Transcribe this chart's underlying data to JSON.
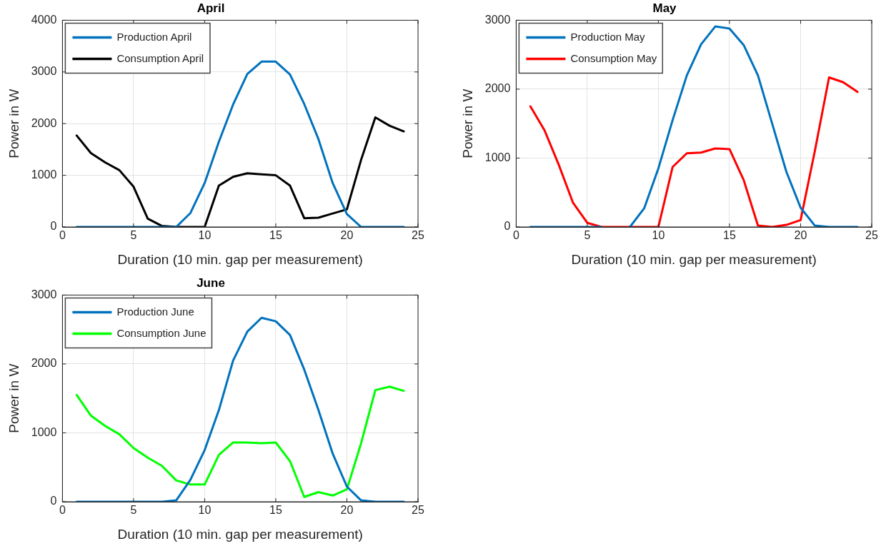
{
  "chart_data": [
    {
      "type": "line",
      "title": "April",
      "xlabel": "Duration (10 min. gap per measurement)",
      "ylabel": "Power in W",
      "x": [
        1,
        2,
        3,
        4,
        5,
        6,
        7,
        8,
        9,
        10,
        11,
        12,
        13,
        14,
        15,
        16,
        17,
        18,
        19,
        20,
        21,
        22,
        23,
        24
      ],
      "series": [
        {
          "name": "Production April",
          "color": "#0072bd",
          "values": [
            0,
            0,
            0,
            0,
            0,
            0,
            0,
            0,
            270,
            850,
            1650,
            2370,
            2960,
            3200,
            3200,
            2950,
            2380,
            1700,
            850,
            250,
            0,
            0,
            0,
            0
          ]
        },
        {
          "name": "Consumption April",
          "color": "#000000",
          "values": [
            1770,
            1430,
            1250,
            1100,
            780,
            160,
            20,
            0,
            0,
            0,
            800,
            970,
            1040,
            1020,
            1000,
            800,
            170,
            180,
            260,
            340,
            1300,
            2120,
            1960,
            1850
          ]
        }
      ],
      "xlim": [
        0,
        25
      ],
      "xticks": [
        0,
        5,
        10,
        15,
        20,
        25
      ],
      "ylim": [
        0,
        4000
      ],
      "yticks": [
        0,
        1000,
        2000,
        3000,
        4000
      ],
      "grid": true,
      "legend": "top left"
    },
    {
      "type": "line",
      "title": "May",
      "xlabel": "Duration (10 min. gap per measurement)",
      "ylabel": "Power in W",
      "x": [
        1,
        2,
        3,
        4,
        5,
        6,
        7,
        8,
        9,
        10,
        11,
        12,
        13,
        14,
        15,
        16,
        17,
        18,
        19,
        20,
        21,
        22,
        23,
        24
      ],
      "series": [
        {
          "name": "Production May",
          "color": "#0072bd",
          "values": [
            0,
            0,
            0,
            0,
            0,
            0,
            null,
            0,
            270,
            850,
            1550,
            2200,
            2650,
            2910,
            2880,
            2640,
            2200,
            1500,
            800,
            280,
            20,
            0,
            0,
            0
          ]
        },
        {
          "name": "Consumption May",
          "color": "#ff0000",
          "values": [
            1750,
            1400,
            900,
            350,
            60,
            0,
            0,
            0,
            0,
            0,
            870,
            1070,
            1080,
            1140,
            1130,
            680,
            20,
            0,
            30,
            100,
            1100,
            2170,
            2100,
            1960
          ]
        }
      ],
      "xlim": [
        0,
        25
      ],
      "xticks": [
        0,
        5,
        10,
        15,
        20,
        25
      ],
      "ylim": [
        0,
        3000
      ],
      "yticks": [
        0,
        1000,
        2000,
        3000
      ],
      "grid": true,
      "legend": "top left"
    },
    {
      "type": "line",
      "title": "June",
      "xlabel": "Duration (10 min. gap per measurement)",
      "ylabel": "Power in W",
      "x": [
        1,
        2,
        3,
        4,
        5,
        6,
        7,
        8,
        9,
        10,
        11,
        12,
        13,
        14,
        15,
        16,
        17,
        18,
        19,
        20,
        21,
        22,
        23,
        24
      ],
      "series": [
        {
          "name": "Production June",
          "color": "#0072bd",
          "values": [
            0,
            0,
            0,
            0,
            0,
            0,
            0,
            20,
            320,
            750,
            1330,
            2050,
            2470,
            2670,
            2620,
            2420,
            1920,
            1330,
            700,
            220,
            20,
            0,
            0,
            0
          ]
        },
        {
          "name": "Consumption June",
          "color": "#00ff00",
          "values": [
            1550,
            1250,
            1100,
            980,
            780,
            640,
            520,
            310,
            250,
            250,
            680,
            860,
            860,
            850,
            860,
            590,
            70,
            140,
            90,
            180,
            850,
            1620,
            1670,
            1610
          ]
        }
      ],
      "xlim": [
        0,
        25
      ],
      "xticks": [
        0,
        5,
        10,
        15,
        20,
        25
      ],
      "ylim": [
        0,
        3000
      ],
      "yticks": [
        0,
        1000,
        2000,
        3000
      ],
      "grid": true,
      "legend": "top left"
    }
  ]
}
